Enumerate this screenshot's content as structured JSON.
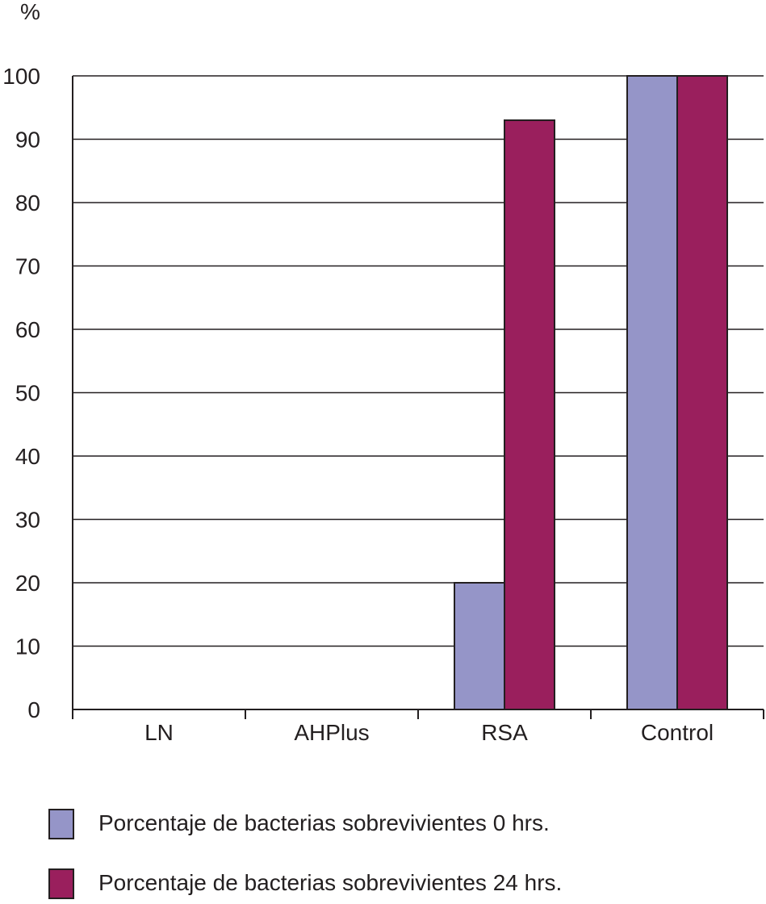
{
  "chart_data": {
    "type": "bar",
    "title": "",
    "xlabel": "",
    "ylabel": "%",
    "categories": [
      "LN",
      "AHPlus",
      "RSA",
      "Control"
    ],
    "series": [
      {
        "name": "Porcentaje de bacterias sobrevivientes 0 hrs.",
        "values": [
          0,
          0,
          20,
          100
        ],
        "color": "#9595c8"
      },
      {
        "name": "Porcentaje de bacterias sobrevivientes 24 hrs.",
        "values": [
          0,
          0,
          93,
          100
        ],
        "color": "#9a1f5d"
      }
    ],
    "ylim": [
      0,
      100
    ],
    "yticks": [
      0,
      10,
      20,
      30,
      40,
      50,
      60,
      70,
      80,
      90,
      100
    ],
    "grid": true,
    "legend_position": "bottom"
  }
}
